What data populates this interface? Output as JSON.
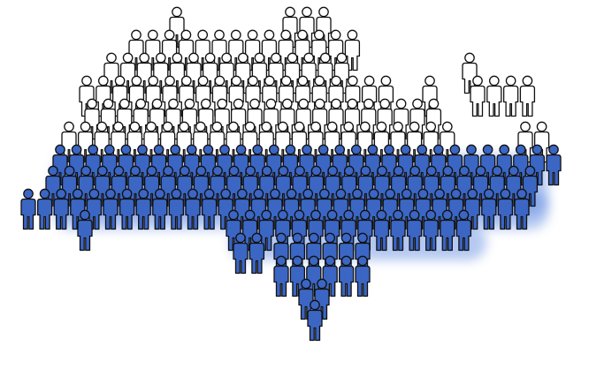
{
  "image": {
    "subject": "crowd-of-people-icons",
    "colors": {
      "background": "#ffffff",
      "outline": "#111111",
      "white_fill": "#ffffff",
      "blue_fill": "#3b66c4",
      "blue_glow": "#5b86e0"
    }
  }
}
